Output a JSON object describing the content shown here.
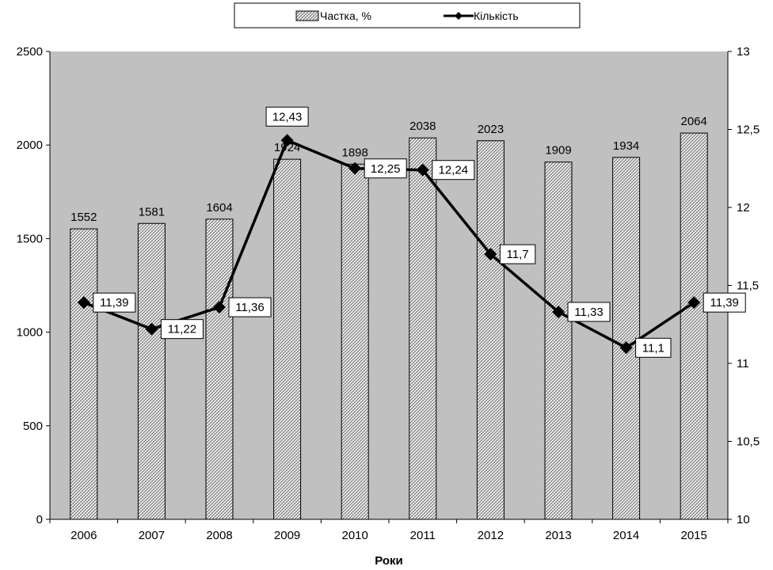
{
  "chart_data": {
    "type": "bar",
    "categories": [
      "2006",
      "2007",
      "2008",
      "2009",
      "2010",
      "2011",
      "2012",
      "2013",
      "2014",
      "2015"
    ],
    "series": [
      {
        "name": "Частка, %",
        "type": "bar",
        "axis": "left",
        "values": [
          1552,
          1581,
          1604,
          1924,
          1898,
          2038,
          2023,
          1909,
          1934,
          2064
        ],
        "labels": [
          "1552",
          "1581",
          "1604",
          "1924",
          "1898",
          "2038",
          "2023",
          "1909",
          "1934",
          "2064"
        ]
      },
      {
        "name": "Кількість",
        "type": "line",
        "axis": "right",
        "values": [
          11.39,
          11.22,
          11.36,
          12.43,
          12.25,
          12.24,
          11.7,
          11.33,
          11.1,
          11.39
        ],
        "labels": [
          "11,39",
          "11,22",
          "11,36",
          "12,43",
          "12,25",
          "12,24",
          "11,7",
          "11,33",
          "11,1",
          "11,39"
        ]
      }
    ],
    "xlabel": "Роки",
    "ylabel": "",
    "y2label": "",
    "ylim": [
      0,
      2500
    ],
    "y2lim": [
      10,
      13
    ],
    "yticks": [
      "0",
      "500",
      "1000",
      "1500",
      "2000",
      "2500"
    ],
    "y2ticks": [
      "10",
      "10,5",
      "11",
      "11,5",
      "12",
      "12,5",
      "13"
    ],
    "grid": false,
    "legend_position": "top",
    "colors": {
      "plot_background": "#c0c0c0",
      "bar_fill": "#ffffff",
      "bar_pattern": "#707070",
      "line": "#000000"
    }
  }
}
